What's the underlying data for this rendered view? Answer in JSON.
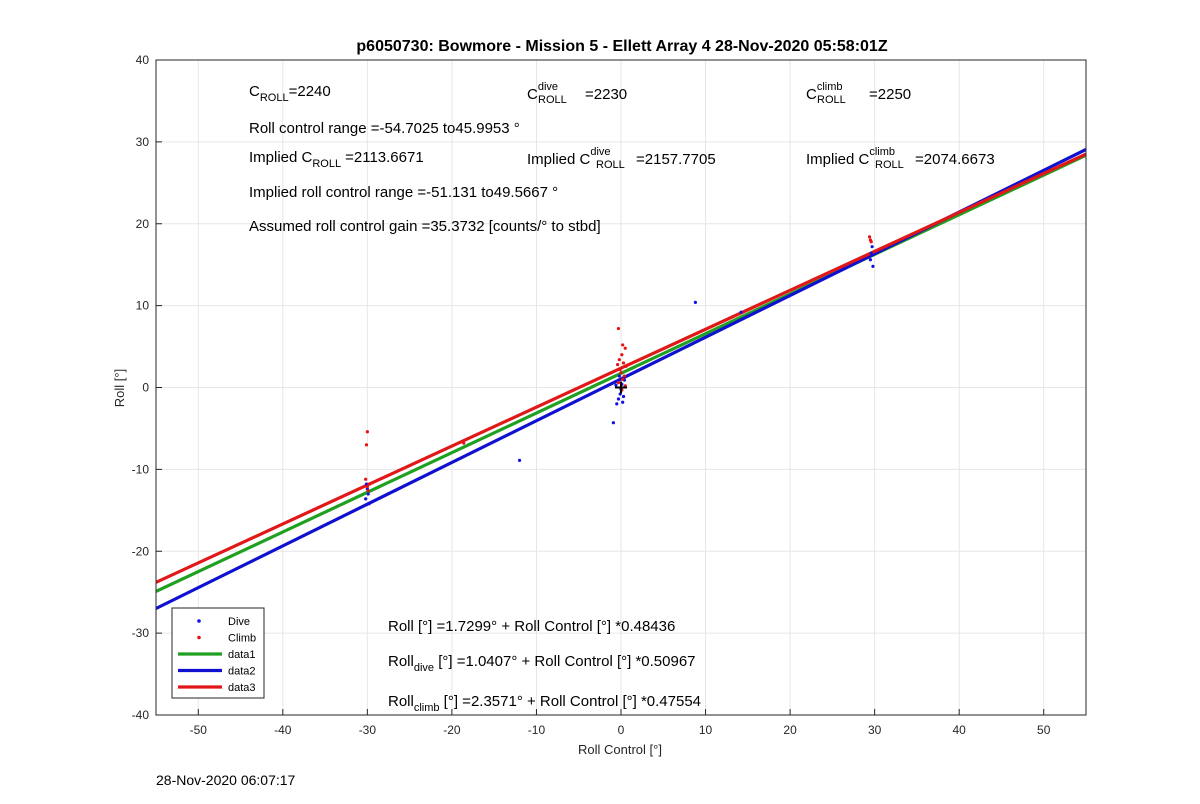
{
  "chart_data": {
    "type": "scatter",
    "title": "p6050730: Bowmore - Mission 5 - Ellett Array 4 28-Nov-2020 05:58:01Z",
    "xlabel": "Roll Control [°]",
    "ylabel": "Roll [°]",
    "xlim": [
      -55,
      55
    ],
    "ylim": [
      -40,
      40
    ],
    "xticks": [
      -50,
      -40,
      -30,
      -20,
      -10,
      0,
      10,
      20,
      30,
      40,
      50
    ],
    "yticks": [
      -40,
      -30,
      -20,
      -10,
      0,
      10,
      20,
      30,
      40
    ],
    "grid": true,
    "legend_position": "bottom-left",
    "series": [
      {
        "name": "Dive",
        "kind": "points",
        "color": "#1010e0",
        "points": [
          [
            -30.2,
            -13.6
          ],
          [
            -30.0,
            -12.4
          ],
          [
            -29.8,
            -14.2
          ],
          [
            -30.1,
            -11.8
          ],
          [
            -29.9,
            -13.0
          ],
          [
            -12.0,
            -8.9
          ],
          [
            -0.9,
            -4.3
          ],
          [
            -0.5,
            -2.0
          ],
          [
            -0.3,
            -1.4
          ],
          [
            -0.1,
            -0.8
          ],
          [
            0.0,
            -0.2
          ],
          [
            0.1,
            0.4
          ],
          [
            -0.4,
            0.8
          ],
          [
            0.3,
            -1.1
          ],
          [
            -0.2,
            1.4
          ],
          [
            0.4,
            0.9
          ],
          [
            0.2,
            -1.8
          ],
          [
            -0.6,
            0.3
          ],
          [
            8.8,
            10.4
          ],
          [
            14.2,
            9.2
          ],
          [
            29.5,
            15.6
          ],
          [
            29.8,
            14.8
          ],
          [
            29.7,
            17.2
          ],
          [
            29.6,
            16.4
          ]
        ]
      },
      {
        "name": "Climb",
        "kind": "points",
        "color": "#e81010",
        "points": [
          [
            -30.0,
            -5.4
          ],
          [
            -30.1,
            -7.0
          ],
          [
            -30.2,
            -11.2
          ],
          [
            -29.8,
            -11.8
          ],
          [
            -29.9,
            -12.6
          ],
          [
            -30.0,
            -12.1
          ],
          [
            -18.6,
            -6.8
          ],
          [
            -0.3,
            7.2
          ],
          [
            0.2,
            5.2
          ],
          [
            0.5,
            4.8
          ],
          [
            0.1,
            4.0
          ],
          [
            -0.2,
            3.4
          ],
          [
            0.3,
            3.0
          ],
          [
            0.6,
            2.6
          ],
          [
            -0.1,
            2.2
          ],
          [
            0.0,
            1.8
          ],
          [
            0.4,
            1.4
          ],
          [
            0.2,
            1.0
          ],
          [
            -0.3,
            0.6
          ],
          [
            0.5,
            0.2
          ],
          [
            0.1,
            -0.3
          ],
          [
            -0.4,
            2.8
          ],
          [
            29.4,
            18.4
          ],
          [
            29.6,
            17.8
          ],
          [
            29.5,
            18.0
          ]
        ]
      },
      {
        "name": "data1",
        "kind": "line",
        "color": "#20a020",
        "intercept": 1.7299,
        "slope": 0.48436
      },
      {
        "name": "data2",
        "kind": "line",
        "color": "#1010d0",
        "intercept": 1.0407,
        "slope": 0.50967
      },
      {
        "name": "data3",
        "kind": "line",
        "color": "#e01818",
        "intercept": 2.3571,
        "slope": 0.47554
      }
    ],
    "marker": {
      "x": 0,
      "y": 0,
      "symbol": "+"
    }
  },
  "annotations": {
    "c_roll": {
      "base": "C",
      "sub": "ROLL",
      "value": "=2240"
    },
    "c_roll_dive": {
      "base": "C",
      "sup": "dive",
      "sub": "ROLL",
      "value": "=2230"
    },
    "c_roll_climb": {
      "base": "C",
      "sup": "climb",
      "sub": "ROLL",
      "value": "=2250"
    },
    "range": "Roll control range =-54.7025 to45.9953 °",
    "implied_c_roll": {
      "prefix": "Implied C",
      "sub": "ROLL",
      "value": "=2113.6671"
    },
    "implied_c_roll_dive": {
      "prefix": "Implied C",
      "sup": "dive",
      "sub": "ROLL",
      "value": "=2157.7705"
    },
    "implied_c_roll_climb": {
      "prefix": "Implied C",
      "sup": "climb",
      "sub": "ROLL",
      "value": "=2074.6673"
    },
    "implied_range": "Implied roll control range =-51.131 to49.5667 °",
    "gain": "Assumed roll control gain =35.3732 [counts/° to stbd]",
    "fit_all": "Roll [°] =1.7299° + Roll Control [°] *0.48436",
    "fit_dive": {
      "base": "Roll",
      "sub": "dive",
      "rest": " [°] =1.0407° + Roll Control [°] *0.50967"
    },
    "fit_climb": {
      "base": "Roll",
      "sub": "climb",
      "rest": " [°] =2.3571° + Roll Control [°] *0.47554"
    }
  },
  "footer": "28-Nov-2020 06:07:17"
}
